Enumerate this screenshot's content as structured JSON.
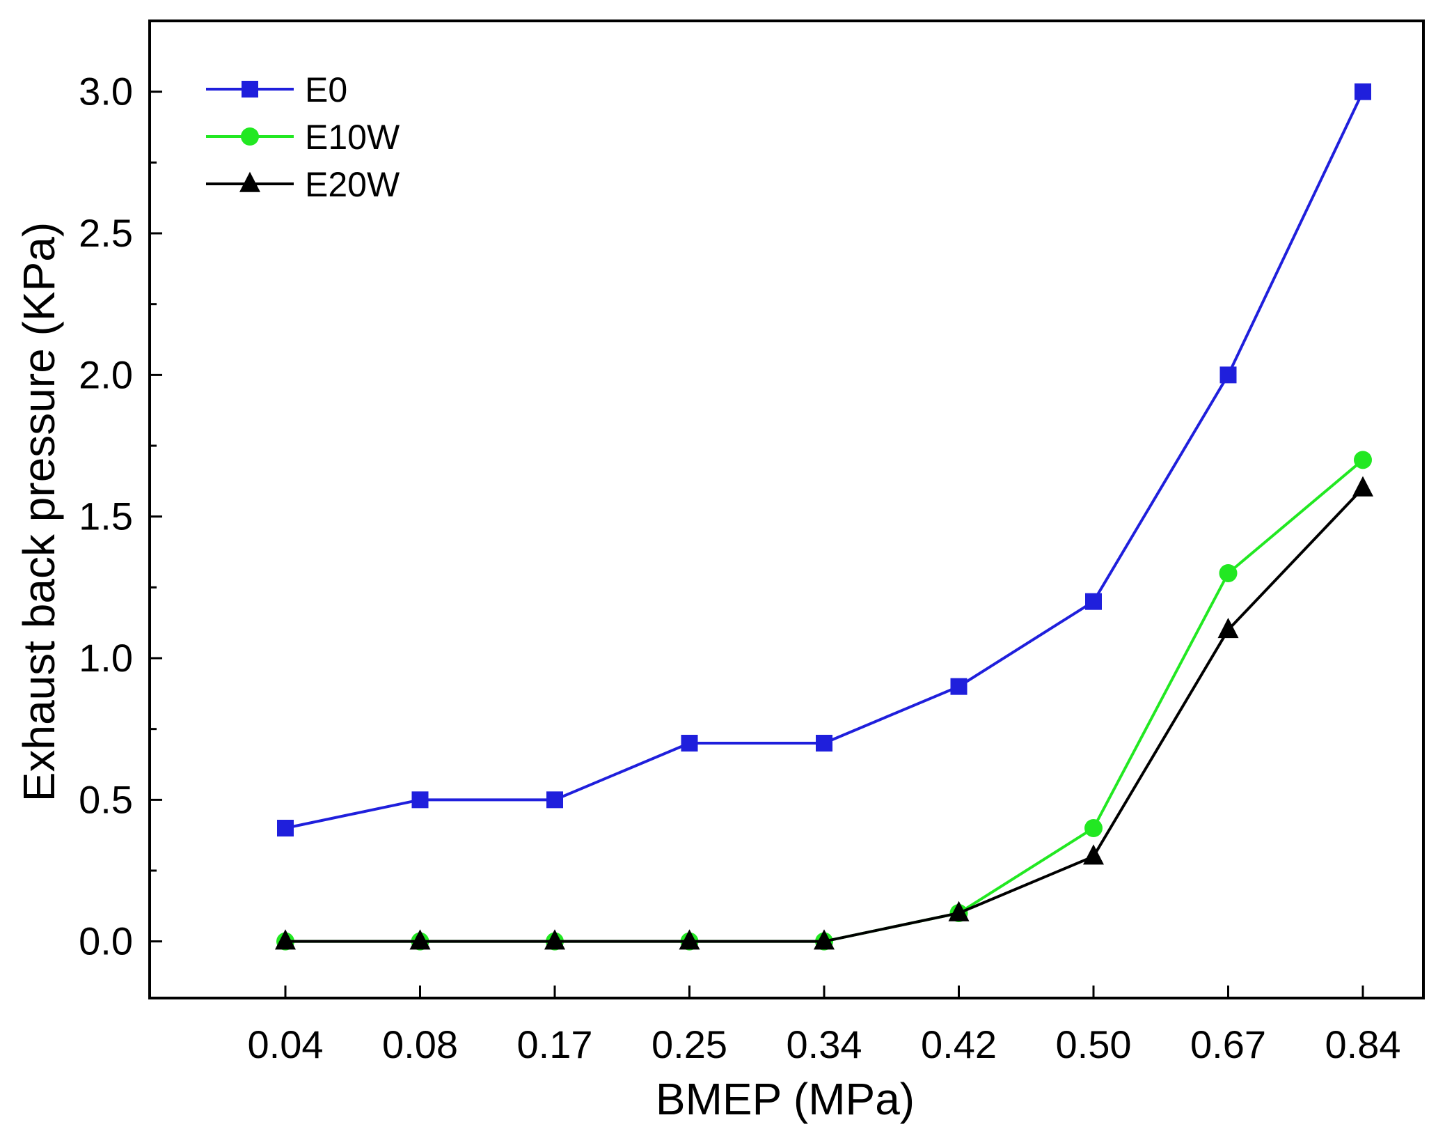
{
  "chart_data": {
    "type": "line",
    "title": "",
    "xlabel": "BMEP (MPa)",
    "ylabel": "Exhaust back pressure (KPa)",
    "categories": [
      "0.04",
      "0.08",
      "0.17",
      "0.25",
      "0.34",
      "0.42",
      "0.50",
      "0.67",
      "0.84"
    ],
    "ylim": [
      -0.2,
      3.25
    ],
    "yticks": [
      "0.0",
      "0.5",
      "1.0",
      "1.5",
      "2.0",
      "2.5",
      "3.0"
    ],
    "legend_position": "top-left",
    "grid": false,
    "series": [
      {
        "name": "E0",
        "marker": "square",
        "color": "#1f1fdc",
        "values": [
          0.4,
          0.5,
          0.5,
          0.7,
          0.7,
          0.9,
          1.2,
          2.0,
          3.0
        ]
      },
      {
        "name": "E10W",
        "marker": "circle",
        "color": "#22e822",
        "values": [
          0.0,
          0.0,
          0.0,
          0.0,
          0.0,
          0.1,
          0.4,
          1.3,
          1.7
        ]
      },
      {
        "name": "E20W",
        "marker": "triangle",
        "color": "#000000",
        "values": [
          0.0,
          0.0,
          0.0,
          0.0,
          0.0,
          0.1,
          0.3,
          1.1,
          1.6
        ]
      }
    ]
  }
}
